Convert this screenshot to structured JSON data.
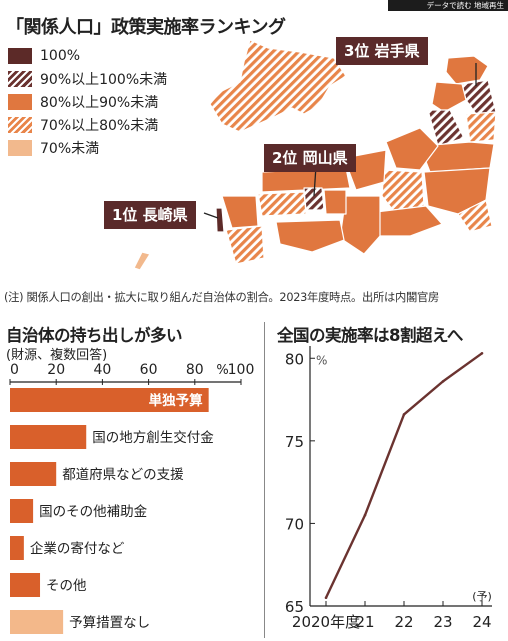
{
  "banner": "データで読む 地域再生",
  "map": {
    "title": "「関係人口」政策実施率ランキング",
    "legend": [
      {
        "label": "100%",
        "color": "#5c2a28",
        "pattern": "solid"
      },
      {
        "label": "90%以上100%未満",
        "color": "#6b3330",
        "pattern": "hatch"
      },
      {
        "label": "80%以上90%未満",
        "color": "#e0773f",
        "pattern": "solid"
      },
      {
        "label": "70%以上80%未満",
        "color": "#e8854a",
        "pattern": "hatch"
      },
      {
        "label": "70%未満",
        "color": "#f2b98d",
        "pattern": "solid"
      }
    ],
    "ranks": [
      {
        "label": "1位 長崎県"
      },
      {
        "label": "2位 岡山県"
      },
      {
        "label": "3位 岩手県"
      }
    ],
    "note": "(注) 関係人口の創出・拡大に取り組んだ自治体の割合。2023年度時点。出所は内閣官房"
  },
  "chart_data": [
    {
      "type": "bar",
      "title": "自治体の持ち出しが多い",
      "subtitle": "(財源、複数回答)",
      "unit": "%",
      "xlim": [
        0,
        100
      ],
      "ticks": [
        "0",
        "20",
        "40",
        "60",
        "80",
        "100"
      ],
      "categories": [
        "単独予算",
        "国の地方創生交付金",
        "都道府県などの支援",
        "国のその他補助金",
        "企業の寄付など",
        "その他",
        "予算措置なし"
      ],
      "values": [
        86,
        33,
        20,
        10,
        6,
        13,
        23
      ],
      "colors": [
        "#d9602b",
        "#d9602b",
        "#d9602b",
        "#d9602b",
        "#d9602b",
        "#d9602b",
        "#f3b88a"
      ]
    },
    {
      "type": "line",
      "title": "全国の実施率は8割超えへ",
      "unit": "%",
      "x_tick_labels": [
        "2020年度",
        "21",
        "22",
        "23",
        "24"
      ],
      "x_note": "(予)",
      "y_ticks": [
        "65",
        "70",
        "75",
        "80"
      ],
      "ylim": [
        65,
        80.5
      ],
      "x": [
        "2020",
        "2021",
        "2022",
        "2023",
        "2024"
      ],
      "values": [
        65.5,
        70.5,
        76.6,
        78.6,
        80.3
      ],
      "color": "#6b3330"
    }
  ]
}
